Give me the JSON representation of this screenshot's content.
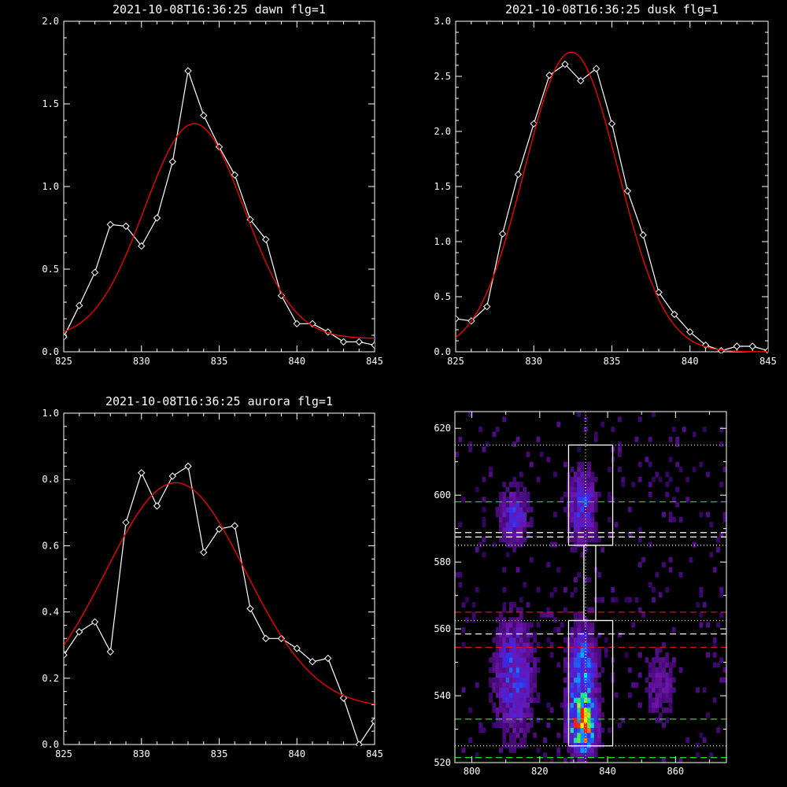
{
  "chart_data": [
    {
      "type": "line",
      "title": "2021-10-08T16:36:25 dawn flg=1",
      "xlim": [
        825,
        845
      ],
      "ylim": [
        0,
        2.0
      ],
      "xticks": [
        "825",
        "830",
        "835",
        "840",
        "845"
      ],
      "yticks": [
        "0.0",
        "0.5",
        "1.0",
        "1.5",
        "2.0"
      ],
      "ytick_values": [
        0,
        0.5,
        1.0,
        1.5,
        2.0
      ],
      "x": [
        825,
        826,
        827,
        828,
        829,
        830,
        831,
        832,
        833,
        834,
        835,
        836,
        837,
        838,
        839,
        840,
        841,
        842,
        843,
        844,
        845
      ],
      "series": [
        {
          "values": [
            0.09,
            0.28,
            0.48,
            0.77,
            0.76,
            0.64,
            0.81,
            1.15,
            1.7,
            1.43,
            1.24,
            1.07,
            0.8,
            0.68,
            0.34,
            0.17,
            0.17,
            0.12,
            0.06,
            0.06,
            0.04
          ],
          "color": "#ffffff",
          "markers": "diamond"
        },
        {
          "gauss": {
            "a": 1.3,
            "mu": 833.4,
            "sigma": 3.2,
            "c": 0.08
          },
          "color": "#ff0000"
        }
      ]
    },
    {
      "type": "line",
      "title": "2021-10-08T16:36:25 dusk flg=1",
      "xlim": [
        825,
        845
      ],
      "ylim": [
        0,
        3.0
      ],
      "xticks": [
        "825",
        "830",
        "835",
        "840",
        "845"
      ],
      "yticks": [
        "0.0",
        "0.5",
        "1.0",
        "1.5",
        "2.0",
        "2.5",
        "3.0"
      ],
      "ytick_values": [
        0,
        0.5,
        1.0,
        1.5,
        2.0,
        2.5,
        3.0
      ],
      "x": [
        825,
        826,
        827,
        828,
        829,
        830,
        831,
        832,
        833,
        834,
        835,
        836,
        837,
        838,
        839,
        840,
        841,
        842,
        843,
        844,
        845
      ],
      "series": [
        {
          "values": [
            0.3,
            0.28,
            0.41,
            1.07,
            1.61,
            2.07,
            2.51,
            2.61,
            2.46,
            2.57,
            2.07,
            1.46,
            1.06,
            0.54,
            0.34,
            0.18,
            0.06,
            0.01,
            0.05,
            0.05,
            0.01
          ],
          "color": "#ffffff",
          "markers": "diamond"
        },
        {
          "gauss": {
            "a": 2.72,
            "mu": 832.4,
            "sigma": 3.0,
            "c": 0.0
          },
          "color": "#ff0000"
        }
      ]
    },
    {
      "type": "line",
      "title": "2021-10-08T16:36:25 aurora flg=1",
      "xlim": [
        825,
        845
      ],
      "ylim": [
        0,
        1.0
      ],
      "xticks": [
        "825",
        "830",
        "835",
        "840",
        "845"
      ],
      "yticks": [
        "0.0",
        "0.2",
        "0.4",
        "0.6",
        "0.8",
        "1.0"
      ],
      "ytick_values": [
        0,
        0.2,
        0.4,
        0.6,
        0.8,
        1.0
      ],
      "x": [
        825,
        826,
        827,
        828,
        829,
        830,
        831,
        832,
        833,
        834,
        835,
        836,
        837,
        838,
        839,
        840,
        841,
        842,
        843,
        844,
        845
      ],
      "series": [
        {
          "values": [
            0.27,
            0.34,
            0.37,
            0.28,
            0.67,
            0.82,
            0.72,
            0.81,
            0.84,
            0.58,
            0.65,
            0.66,
            0.41,
            0.32,
            0.32,
            0.29,
            0.25,
            0.26,
            0.14,
            0.0,
            0.07
          ],
          "color": "#ffffff",
          "markers": "diamond"
        },
        {
          "gauss": {
            "a": 0.68,
            "mu": 832.2,
            "sigma": 4.5,
            "c": 0.11
          },
          "color": "#ff0000"
        }
      ]
    },
    {
      "type": "heatmap",
      "title": "",
      "xlim": [
        795,
        875
      ],
      "ylim": [
        520,
        625
      ],
      "xticks": [
        "800",
        "820",
        "840",
        "860"
      ],
      "xtick_values": [
        800,
        820,
        840,
        860
      ],
      "yticks": [
        "520",
        "540",
        "560",
        "580",
        "600",
        "620"
      ],
      "ytick_values": [
        520,
        540,
        560,
        580,
        600,
        620
      ],
      "hotspots": [
        {
          "x": 832,
          "y": 530,
          "sx": 2.5,
          "sy": 5,
          "amp": 1.0
        },
        {
          "x": 832,
          "y": 545,
          "sx": 3,
          "sy": 10,
          "amp": 0.55
        },
        {
          "x": 812,
          "y": 545,
          "sx": 4,
          "sy": 12,
          "amp": 0.4
        },
        {
          "x": 812,
          "y": 593,
          "sx": 3,
          "sy": 6,
          "amp": 0.35
        },
        {
          "x": 832,
          "y": 596,
          "sx": 3,
          "sy": 8,
          "amp": 0.38
        },
        {
          "x": 855,
          "y": 542,
          "sx": 3,
          "sy": 8,
          "amp": 0.22
        }
      ],
      "boxes": [
        {
          "x0": 828.5,
          "x1": 841.5,
          "y0": 525,
          "y1": 562.5
        },
        {
          "x0": 828.5,
          "x1": 841.5,
          "y0": 585,
          "y1": 615
        },
        {
          "x0": 833.0,
          "x1": 836.5,
          "y0": 562.5,
          "y1": 585
        }
      ],
      "hlines_dotted_white": [
        525,
        562.5,
        585,
        615
      ],
      "hlines_dashed_white": [
        558.5,
        587.5,
        588.8
      ],
      "hlines_dashed_green": [
        521.5,
        533,
        598
      ],
      "hlines_dashed_red": [
        554.5,
        565
      ],
      "vline_dotted_white": 833.5
    }
  ]
}
